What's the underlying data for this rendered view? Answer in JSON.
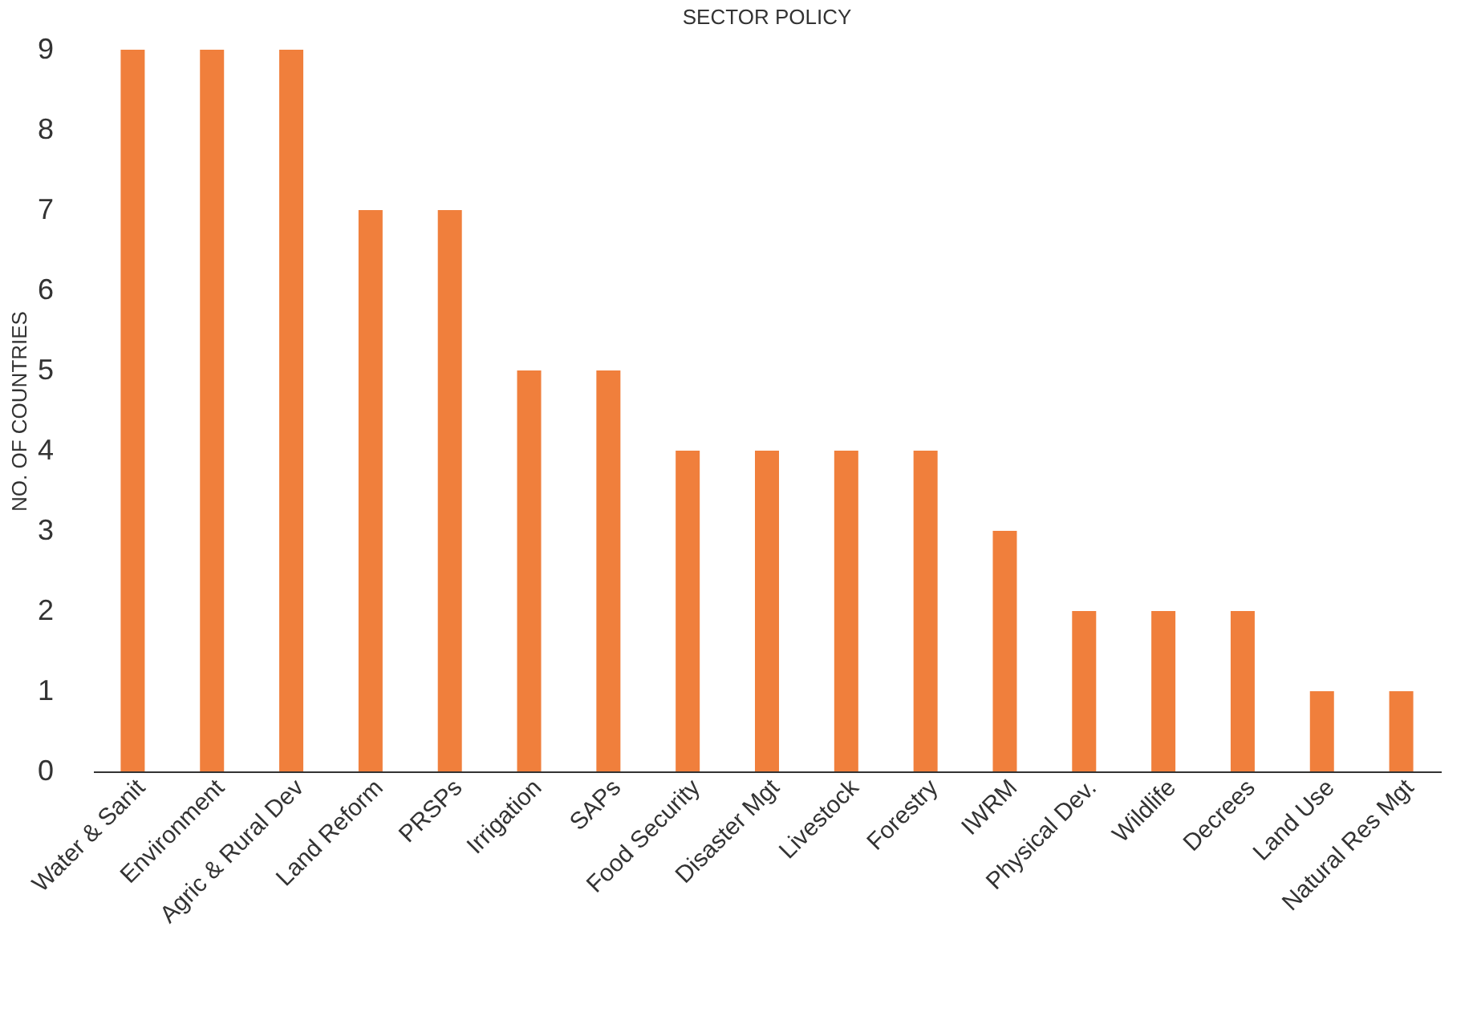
{
  "chart_data": {
    "type": "bar",
    "title": "SECTOR POLICY",
    "ylabel": "NO. OF COUNTRIES",
    "categories": [
      "Water & Sanit",
      "Environment",
      "Agric & Rural Dev",
      "Land Reform",
      "PRSPs",
      "Irrigation",
      "SAPs",
      "Food Security",
      "Disaster Mgt",
      "Livestock",
      "Forestry",
      "IWRM",
      "Physical  Dev.",
      "Wildlife",
      "Decrees",
      "Land Use",
      "Natural Res Mgt"
    ],
    "values": [
      9,
      9,
      9,
      7,
      7,
      5,
      5,
      4,
      4,
      4,
      4,
      3,
      2,
      2,
      2,
      1,
      1
    ],
    "color": "#f07f3c",
    "ylim": [
      0,
      9
    ],
    "yticks": [
      0,
      1,
      2,
      3,
      4,
      5,
      6,
      7,
      8,
      9
    ],
    "grid": false
  }
}
